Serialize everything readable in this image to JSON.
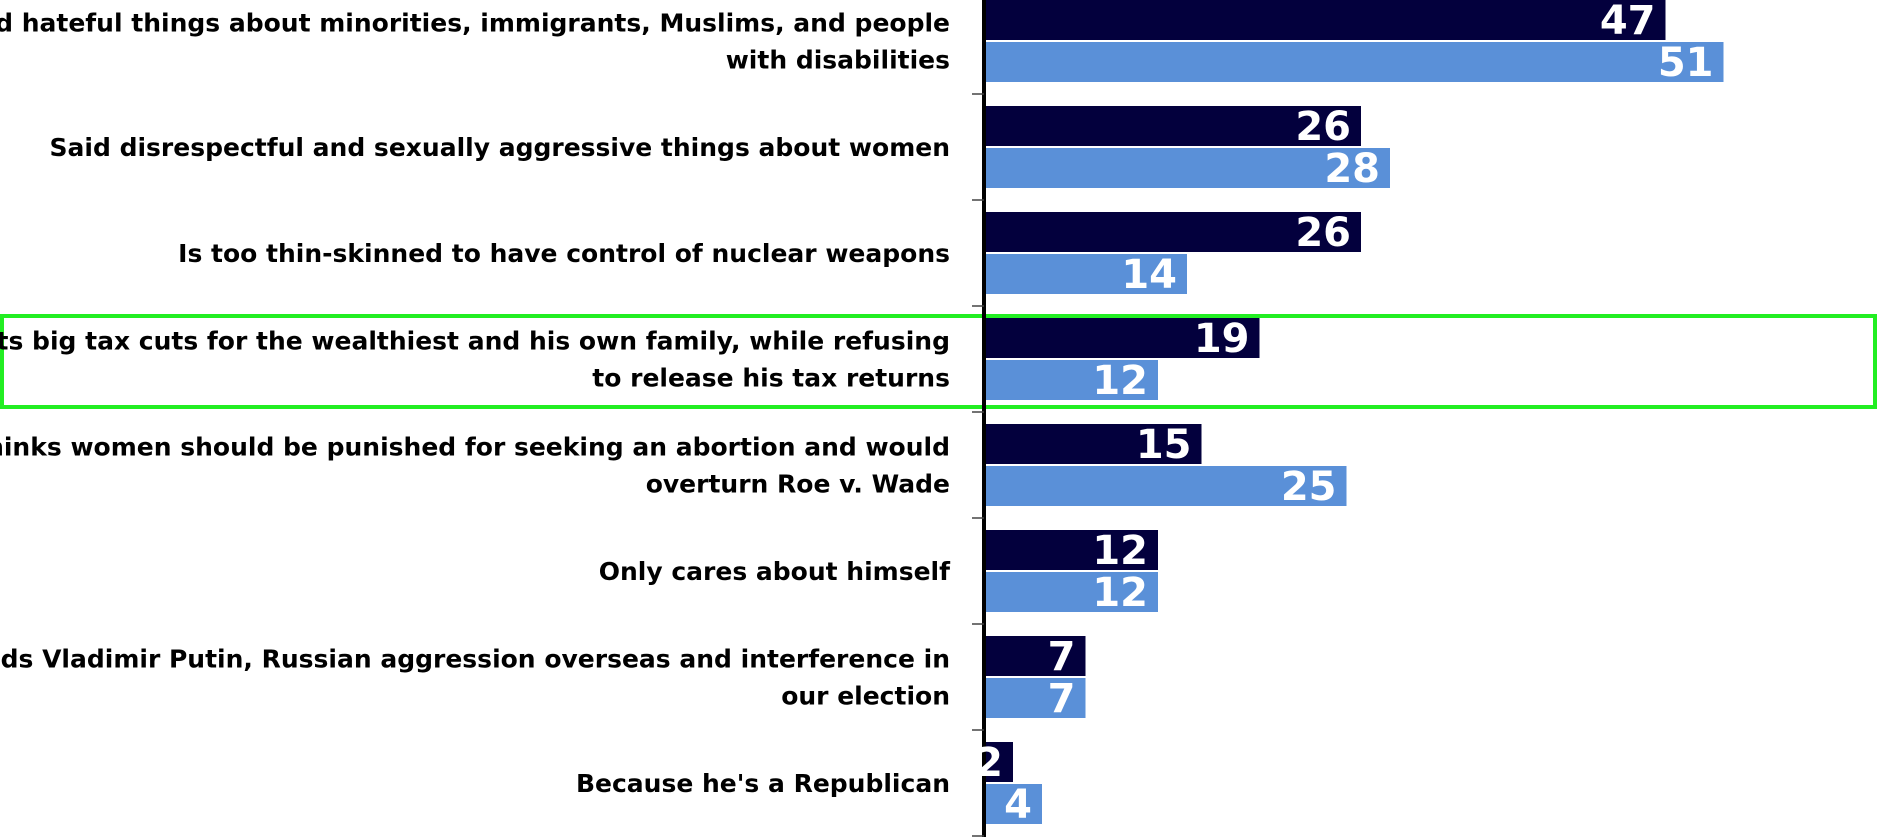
{
  "chart_data": {
    "type": "bar",
    "orientation": "horizontal",
    "categories": [
      [
        "Said hateful things about minorities, immigrants, Muslims, and people",
        "with disabilities"
      ],
      [
        "Said disrespectful and sexually aggressive things about women"
      ],
      [
        "Is too thin-skinned to have control of nuclear weapons"
      ],
      [
        "Wants big tax cuts for the wealthiest and his own family, while refusing",
        "to release his tax returns"
      ],
      [
        "Thinks women should be punished for seeking an abortion and would",
        "overturn Roe v. Wade"
      ],
      [
        "Only cares about himself"
      ],
      [
        "Defends Vladimir Putin, Russian aggression overseas and interference in",
        "our election"
      ],
      [
        "Because he's a Republican"
      ]
    ],
    "series": [
      {
        "color": "#03003d",
        "values": [
          47,
          26,
          26,
          19,
          15,
          12,
          7,
          2
        ]
      },
      {
        "color": "#5a90d8",
        "values": [
          51,
          28,
          14,
          12,
          25,
          12,
          7,
          4
        ]
      }
    ],
    "xlim": [
      0,
      100
    ],
    "value_labels": true,
    "grid": false,
    "legend": "none",
    "highlight": {
      "category_index": 3,
      "color": "#22ee22"
    }
  }
}
